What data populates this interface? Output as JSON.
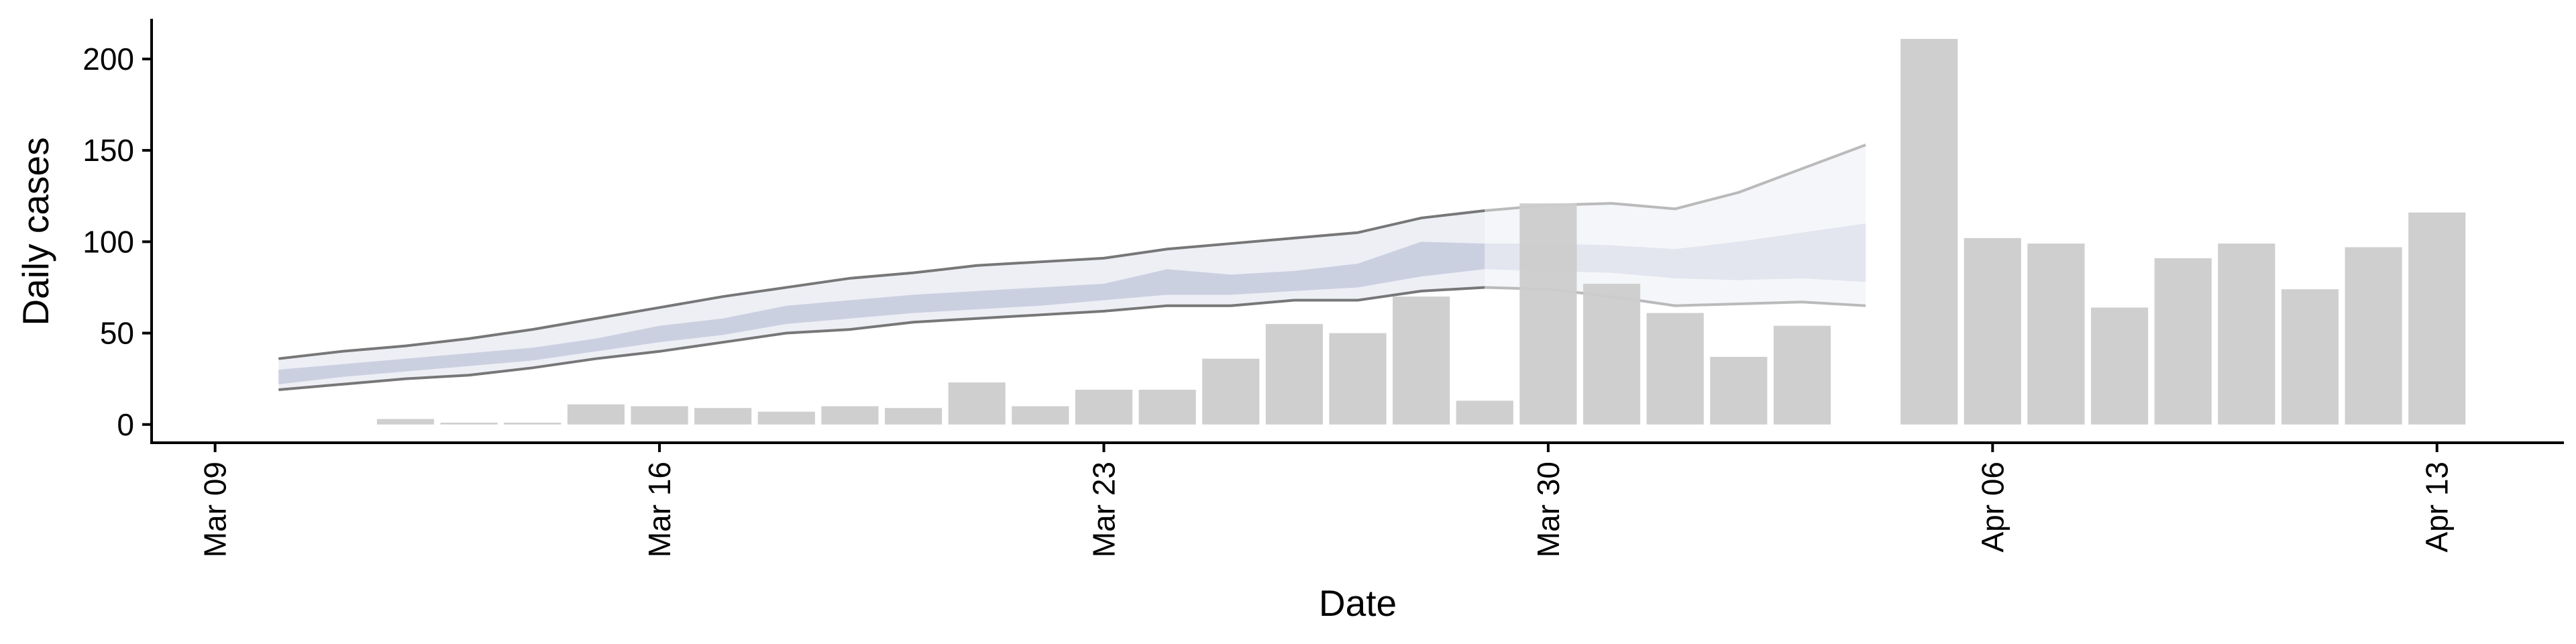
{
  "chart_data": {
    "type": "bar",
    "xlabel": "Date",
    "ylabel": "Daily cases",
    "ylim": [
      -10,
      222
    ],
    "xlim_days": [
      "2020-03-08",
      "2020-04-15"
    ],
    "y_ticks": [
      0,
      50,
      100,
      150,
      200
    ],
    "x_ticks": [
      {
        "label": "Mar 09",
        "date": "2020-03-09"
      },
      {
        "label": "Mar 16",
        "date": "2020-03-16"
      },
      {
        "label": "Mar 23",
        "date": "2020-03-23"
      },
      {
        "label": "Mar 30",
        "date": "2020-03-30"
      },
      {
        "label": "Apr 06",
        "date": "2020-04-06"
      },
      {
        "label": "Apr 13",
        "date": "2020-04-13"
      }
    ],
    "grid": false,
    "legend": "none",
    "bars": {
      "name": "Daily cases",
      "color": "#cccccc",
      "points": [
        {
          "date": "2020-03-12",
          "value": 3
        },
        {
          "date": "2020-03-13",
          "value": 1
        },
        {
          "date": "2020-03-14",
          "value": 1
        },
        {
          "date": "2020-03-15",
          "value": 11
        },
        {
          "date": "2020-03-16",
          "value": 10
        },
        {
          "date": "2020-03-17",
          "value": 9
        },
        {
          "date": "2020-03-18",
          "value": 7
        },
        {
          "date": "2020-03-19",
          "value": 10
        },
        {
          "date": "2020-03-20",
          "value": 9
        },
        {
          "date": "2020-03-21",
          "value": 23
        },
        {
          "date": "2020-03-22",
          "value": 10
        },
        {
          "date": "2020-03-23",
          "value": 19
        },
        {
          "date": "2020-03-24",
          "value": 19
        },
        {
          "date": "2020-03-25",
          "value": 36
        },
        {
          "date": "2020-03-26",
          "value": 55
        },
        {
          "date": "2020-03-27",
          "value": 50
        },
        {
          "date": "2020-03-28",
          "value": 70
        },
        {
          "date": "2020-03-29",
          "value": 13
        },
        {
          "date": "2020-03-30",
          "value": 121
        },
        {
          "date": "2020-03-31",
          "value": 77
        },
        {
          "date": "2020-04-01",
          "value": 61
        },
        {
          "date": "2020-04-02",
          "value": 37
        },
        {
          "date": "2020-04-03",
          "value": 54
        },
        {
          "date": "2020-04-05",
          "value": 211
        },
        {
          "date": "2020-04-06",
          "value": 102
        },
        {
          "date": "2020-04-07",
          "value": 99
        },
        {
          "date": "2020-04-08",
          "value": 64
        },
        {
          "date": "2020-04-09",
          "value": 91
        },
        {
          "date": "2020-04-10",
          "value": 99
        },
        {
          "date": "2020-04-11",
          "value": 74
        },
        {
          "date": "2020-04-12",
          "value": 97
        },
        {
          "date": "2020-04-13",
          "value": 116
        }
      ]
    },
    "estimate_band": {
      "color": "#b8bed6",
      "estimate_until": "2020-03-29",
      "forecast_from": "2020-03-29",
      "points": [
        {
          "date": "2020-03-10",
          "lower90": 19,
          "lower50": 22,
          "upper50": 30,
          "upper90": 36
        },
        {
          "date": "2020-03-11",
          "lower90": 22,
          "lower50": 26,
          "upper50": 33,
          "upper90": 40
        },
        {
          "date": "2020-03-12",
          "lower90": 25,
          "lower50": 29,
          "upper50": 36,
          "upper90": 43
        },
        {
          "date": "2020-03-13",
          "lower90": 27,
          "lower50": 32,
          "upper50": 39,
          "upper90": 47
        },
        {
          "date": "2020-03-14",
          "lower90": 31,
          "lower50": 35,
          "upper50": 42,
          "upper90": 52
        },
        {
          "date": "2020-03-15",
          "lower90": 36,
          "lower50": 40,
          "upper50": 47,
          "upper90": 58
        },
        {
          "date": "2020-03-16",
          "lower90": 40,
          "lower50": 45,
          "upper50": 54,
          "upper90": 64
        },
        {
          "date": "2020-03-17",
          "lower90": 45,
          "lower50": 49,
          "upper50": 58,
          "upper90": 70
        },
        {
          "date": "2020-03-18",
          "lower90": 50,
          "lower50": 55,
          "upper50": 65,
          "upper90": 75
        },
        {
          "date": "2020-03-19",
          "lower90": 52,
          "lower50": 58,
          "upper50": 68,
          "upper90": 80
        },
        {
          "date": "2020-03-20",
          "lower90": 56,
          "lower50": 61,
          "upper50": 71,
          "upper90": 83
        },
        {
          "date": "2020-03-21",
          "lower90": 58,
          "lower50": 63,
          "upper50": 73,
          "upper90": 87
        },
        {
          "date": "2020-03-22",
          "lower90": 60,
          "lower50": 65,
          "upper50": 75,
          "upper90": 89
        },
        {
          "date": "2020-03-23",
          "lower90": 62,
          "lower50": 68,
          "upper50": 77,
          "upper90": 91
        },
        {
          "date": "2020-03-24",
          "lower90": 65,
          "lower50": 71,
          "upper50": 85,
          "upper90": 96
        },
        {
          "date": "2020-03-25",
          "lower90": 65,
          "lower50": 71,
          "upper50": 82,
          "upper90": 99
        },
        {
          "date": "2020-03-26",
          "lower90": 68,
          "lower50": 73,
          "upper50": 84,
          "upper90": 102
        },
        {
          "date": "2020-03-27",
          "lower90": 68,
          "lower50": 75,
          "upper50": 88,
          "upper90": 105
        },
        {
          "date": "2020-03-28",
          "lower90": 73,
          "lower50": 81,
          "upper50": 100,
          "upper90": 113
        },
        {
          "date": "2020-03-29",
          "lower90": 75,
          "lower50": 85,
          "upper50": 99,
          "upper90": 117
        },
        {
          "date": "2020-03-30",
          "lower90": 74,
          "lower50": 84,
          "upper50": 99,
          "upper90": 120
        },
        {
          "date": "2020-03-31",
          "lower90": 70,
          "lower50": 83,
          "upper50": 98,
          "upper90": 121
        },
        {
          "date": "2020-04-01",
          "lower90": 65,
          "lower50": 80,
          "upper50": 96,
          "upper90": 118
        },
        {
          "date": "2020-04-02",
          "lower90": 66,
          "lower50": 79,
          "upper50": 100,
          "upper90": 127
        },
        {
          "date": "2020-04-03",
          "lower90": 67,
          "lower50": 80,
          "upper50": 105,
          "upper90": 140
        },
        {
          "date": "2020-04-04",
          "lower90": 65,
          "lower50": 78,
          "upper50": 110,
          "upper90": 153
        }
      ]
    }
  }
}
